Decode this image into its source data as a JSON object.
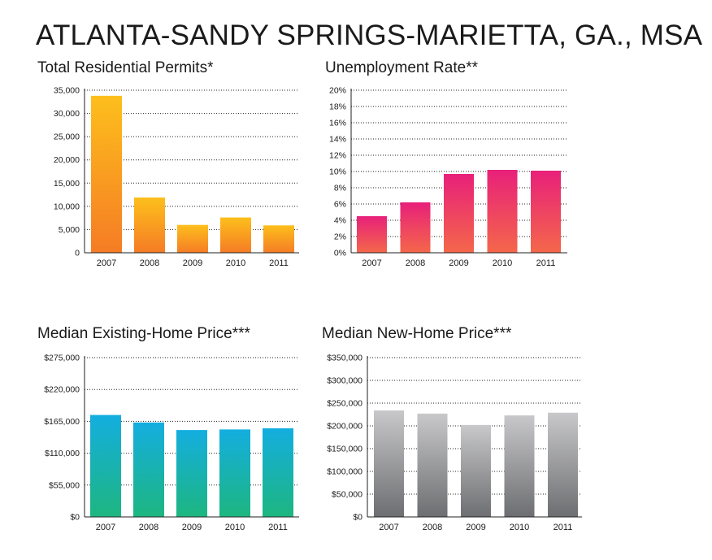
{
  "title": "ATLANTA-SANDY SPRINGS-MARIETTA, GA., MSA",
  "chart_data": [
    {
      "id": "permits",
      "type": "bar",
      "title": "Total Residential Permits*",
      "categories": [
        "2007",
        "2008",
        "2009",
        "2010",
        "2011"
      ],
      "values": [
        33800,
        11900,
        6000,
        7600,
        5900
      ],
      "ylim": [
        0,
        35000
      ],
      "yticks": [
        0,
        5000,
        10000,
        15000,
        20000,
        25000,
        30000,
        35000
      ],
      "ytick_labels": [
        "0",
        "5,000",
        "10,000",
        "15,000",
        "20,000",
        "25,000",
        "30,000",
        "35,000"
      ],
      "grid": true,
      "colors": [
        "#fdbf1c",
        "#f57c25"
      ]
    },
    {
      "id": "unemployment",
      "type": "bar",
      "title": "Unemployment Rate**",
      "categories": [
        "2007",
        "2008",
        "2009",
        "2010",
        "2011"
      ],
      "values": [
        4.5,
        6.2,
        9.7,
        10.2,
        10.1
      ],
      "ylim": [
        0,
        20
      ],
      "yticks": [
        0,
        2,
        4,
        6,
        8,
        10,
        12,
        14,
        16,
        18,
        20
      ],
      "ytick_labels": [
        "0%",
        "2%",
        "4%",
        "6%",
        "8%",
        "10%",
        "12%",
        "14%",
        "16%",
        "18%",
        "20%"
      ],
      "grid": true,
      "colors": [
        "#e8207a",
        "#f4674a"
      ]
    },
    {
      "id": "existing",
      "type": "bar",
      "title": "Median Existing-Home Price***",
      "categories": [
        "2007",
        "2008",
        "2009",
        "2010",
        "2011"
      ],
      "values": [
        176000,
        163000,
        150000,
        151000,
        153000
      ],
      "ylim": [
        0,
        275000
      ],
      "yticks": [
        0,
        55000,
        110000,
        165000,
        220000,
        275000
      ],
      "ytick_labels": [
        "$0",
        "$55,000",
        "$110,000",
        "$165,000",
        "$220,000",
        "$275,000"
      ],
      "grid": true,
      "colors": [
        "#14aee0",
        "#1db680"
      ]
    },
    {
      "id": "newhome",
      "type": "bar",
      "title": "Median New-Home Price***",
      "categories": [
        "2007",
        "2008",
        "2009",
        "2010",
        "2011"
      ],
      "values": [
        234000,
        227000,
        202000,
        223000,
        229000
      ],
      "ylim": [
        0,
        350000
      ],
      "yticks": [
        0,
        50000,
        100000,
        150000,
        200000,
        250000,
        300000,
        350000
      ],
      "ytick_labels": [
        "$0",
        "$50,000",
        "$100,000",
        "$150,000",
        "$200,000",
        "$250,000",
        "$300,000",
        "$350,000"
      ],
      "grid": true,
      "colors": [
        "#c8c8ca",
        "#6d6e71"
      ]
    }
  ]
}
